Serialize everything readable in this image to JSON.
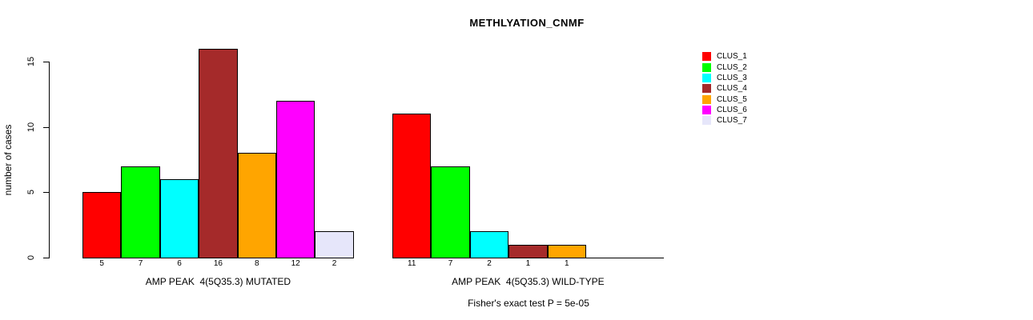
{
  "chart_data": {
    "type": "bar",
    "title": "METHLYATION_CNMF",
    "ylabel": "number of cases",
    "ylim": [
      0,
      16
    ],
    "yticks": [
      0,
      5,
      10,
      15
    ],
    "grid": false,
    "legend_position": "right",
    "clusters": [
      "CLUS_1",
      "CLUS_2",
      "CLUS_3",
      "CLUS_4",
      "CLUS_5",
      "CLUS_6",
      "CLUS_7"
    ],
    "colors": [
      "#ff0000",
      "#00ff00",
      "#00ffff",
      "#a52a2a",
      "#ffa500",
      "#ff00ff",
      "#e6e6fa"
    ],
    "groups": [
      {
        "key": "mutated",
        "label": "AMP PEAK  4(5Q35.3) MUTATED",
        "values": [
          5,
          7,
          6,
          16,
          8,
          12,
          2
        ]
      },
      {
        "key": "wild-type",
        "label": "AMP PEAK  4(5Q35.3) WILD-TYPE",
        "values": [
          11,
          7,
          2,
          1,
          1,
          0,
          0
        ]
      }
    ],
    "annotation": "Fisher's exact test P = 5e-05"
  }
}
